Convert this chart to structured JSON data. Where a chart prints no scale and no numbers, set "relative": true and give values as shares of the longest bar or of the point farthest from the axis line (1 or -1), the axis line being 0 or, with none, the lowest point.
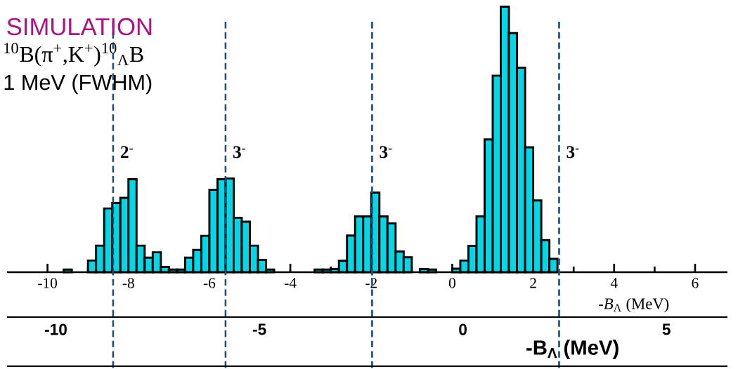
{
  "chart_data": {
    "type": "bar",
    "title": "SIMULATION",
    "annotations": [
      "$^{10}$B(π$^{+}$,K$^{+}$)$^{10}$$_{Λ}$B",
      "1 MeV (FWHM)",
      "2$^{-}$",
      "3$^{-}$",
      "3$^{-}$",
      "3$^{-}$"
    ],
    "x": [
      -9.5,
      -9.3,
      -9.1,
      -8.9,
      -8.7,
      -8.5,
      -8.3,
      -8.1,
      -7.9,
      -7.7,
      -7.5,
      -7.3,
      -7.1,
      -6.9,
      -6.7,
      -6.5,
      -6.3,
      -6.1,
      -5.9,
      -5.7,
      -5.5,
      -5.3,
      -5.1,
      -4.9,
      -4.7,
      -4.5,
      -4.3,
      -4.1,
      -3.9,
      -3.7,
      -3.5,
      -3.3,
      -3.1,
      -2.9,
      -2.7,
      -2.5,
      -2.3,
      -2.1,
      -1.9,
      -1.7,
      -1.5,
      -1.3,
      -1.1,
      -0.9,
      -0.7,
      -0.5,
      -0.3,
      -0.1,
      0.1,
      0.3,
      0.5,
      0.7,
      0.9,
      1.1,
      1.3,
      1.5,
      1.7,
      1.9,
      2.1,
      2.3,
      2.5
    ],
    "values": [
      0.01,
      null,
      null,
      0.044,
      0.1,
      0.24,
      0.26,
      0.28,
      0.35,
      0.1,
      0.055,
      0.075,
      0.02,
      0.01,
      0.01,
      0.055,
      0.084,
      0.137,
      0.31,
      0.35,
      0.353,
      0.205,
      0.19,
      0.1,
      0.046,
      0.01,
      null,
      null,
      null,
      null,
      null,
      0.01,
      0.01,
      0.012,
      0.043,
      0.138,
      0.21,
      0.21,
      0.3,
      0.21,
      0.184,
      0.078,
      0.056,
      null,
      0.012,
      0.01,
      null,
      null,
      0.013,
      0.044,
      0.099,
      0.21,
      0.5,
      0.74,
      1.0,
      0.9,
      0.77,
      0.47,
      0.27,
      0.12,
      0.05
    ],
    "relative": true,
    "color": "#00d8e8",
    "xlim": [
      -11,
      6.8
    ],
    "xticks": [
      -10,
      -8,
      -6,
      -4,
      -2,
      0,
      2,
      4,
      6
    ],
    "xlabel": "-*B*$_{Λ}$ (MeV)",
    "x2lim": [
      -11.2,
      6.5
    ],
    "x2ticks": [
      -10,
      -5,
      0,
      5
    ],
    "x2label": "-B$_{Λ}$ (MeV)",
    "ref_lines": [
      {
        "axis": "x",
        "value": -8.38,
        "color": "#1f4e79",
        "line_style": "dashed"
      },
      {
        "axis": "x",
        "value": -5.6,
        "color": "#1f4e79",
        "line_style": "dashed"
      },
      {
        "axis": "x",
        "value": -1.98,
        "color": "#1f4e79",
        "line_style": "dashed"
      },
      {
        "axis": "x",
        "value": 2.64,
        "color": "#1f4e79",
        "line_style": "dashed"
      }
    ]
  }
}
